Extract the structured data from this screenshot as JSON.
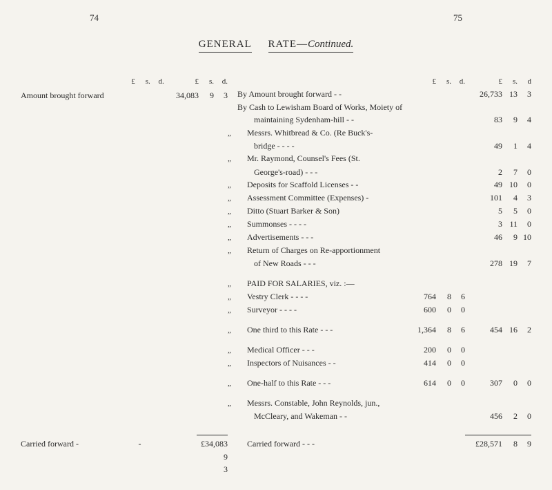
{
  "page_left_num": "74",
  "page_right_num": "75",
  "title_main": "GENERAL",
  "title_rate": "RATE—",
  "title_cont": "Continued.",
  "col_hdr": {
    "L": "£",
    "s": "s.",
    "d": "d."
  },
  "col_hdr_right": {
    "L": "£",
    "s": "s.",
    "d": "d"
  },
  "left": {
    "amount_brought_forward_label": "Amount brought forward",
    "amount_brought_forward": {
      "L": "34,083",
      "s": "9",
      "d": "3"
    }
  },
  "right": {
    "r0": {
      "label": "By Amount brought forward        -            -",
      "outer": {
        "L": "26,733",
        "s": "13",
        "d": "3"
      }
    },
    "r1": {
      "label": "By Cash to Lewisham Board of Works, Moiety of"
    },
    "r2": {
      "label": "maintaining Sydenham-hill -        -",
      "outer": {
        "L": "83",
        "s": "9",
        "d": "4"
      }
    },
    "r3": {
      "ditto": "„",
      "label": "Messrs. Whitbread & Co. (Re Buck's-"
    },
    "r4": {
      "label": "bridge        -        -        -        -",
      "outer": {
        "L": "49",
        "s": "1",
        "d": "4"
      }
    },
    "r5": {
      "ditto": "„",
      "label": "Mr. Raymond, Counsel's Fees (St."
    },
    "r6": {
      "label": "George's-road)        -        -        -",
      "outer": {
        "L": "2",
        "s": "7",
        "d": "0"
      }
    },
    "r7": {
      "ditto": "„",
      "label": "Deposits for Scaffold Licenses -        -",
      "outer": {
        "L": "49",
        "s": "10",
        "d": "0"
      }
    },
    "r8": {
      "ditto": "„",
      "label": "Assessment Committee (Expenses)    -",
      "outer": {
        "L": "101",
        "s": "4",
        "d": "3"
      }
    },
    "r9": {
      "ditto": "„",
      "label": "Ditto              (Stuart Barker & Son)",
      "outer": {
        "L": "5",
        "s": "5",
        "d": "0"
      }
    },
    "r10": {
      "ditto": "„",
      "label": "Summonses    -        -        -        -",
      "outer": {
        "L": "3",
        "s": "11",
        "d": "0"
      }
    },
    "r11": {
      "ditto": "„",
      "label": "Advertisements        -        -        -",
      "outer": {
        "L": "46",
        "s": "9",
        "d": "10"
      }
    },
    "r12": {
      "ditto": "„",
      "label": "Return of Charges on Re-apportionment"
    },
    "r13": {
      "label": "of New Roads        -        -        -",
      "outer": {
        "L": "278",
        "s": "19",
        "d": "7"
      }
    },
    "r14": {
      "ditto": "„",
      "label": "PAID FOR SALARIES, viz. :—"
    },
    "r15": {
      "ditto": "„",
      "label": "Vestry Clerk -        -        -        -",
      "inner": {
        "L": "764",
        "s": "8",
        "d": "6"
      }
    },
    "r16": {
      "ditto": "„",
      "label": "Surveyor       -        -        -        -",
      "inner": {
        "L": "600",
        "s": "0",
        "d": "0"
      }
    },
    "r17": {
      "ditto": "„",
      "label": "One third to this Rate -        -        -",
      "inner": {
        "L": "1,364",
        "s": "8",
        "d": "6"
      },
      "outer": {
        "L": "454",
        "s": "16",
        "d": "2"
      }
    },
    "r18": {
      "ditto": "„",
      "label": "Medical Officer        -        -        -",
      "inner": {
        "L": "200",
        "s": "0",
        "d": "0"
      }
    },
    "r19": {
      "ditto": "„",
      "label": "Inspectors of Nuisances        -        -",
      "inner": {
        "L": "414",
        "s": "0",
        "d": "0"
      }
    },
    "r20": {
      "ditto": "„",
      "label": "One-half to this Rate -        -        -",
      "inner": {
        "L": "614",
        "s": "0",
        "d": "0"
      },
      "outer": {
        "L": "307",
        "s": "0",
        "d": "0"
      }
    },
    "r21": {
      "ditto": "„",
      "label": "Messrs. Constable, John Reynolds, jun.,"
    },
    "r22": {
      "label": "McCleary, and Wakeman    -        -",
      "outer": {
        "L": "456",
        "s": "2",
        "d": "0"
      }
    }
  },
  "footer": {
    "carried_left_label": "Carried forward -",
    "dash": "-",
    "carried_left_total": {
      "L": "£34,083",
      "s": "9",
      "d": "3"
    },
    "carried_right_label": "Carried forward        -        -        -",
    "carried_right_total": {
      "L": "£28,571",
      "s": "8",
      "d": "9"
    }
  }
}
